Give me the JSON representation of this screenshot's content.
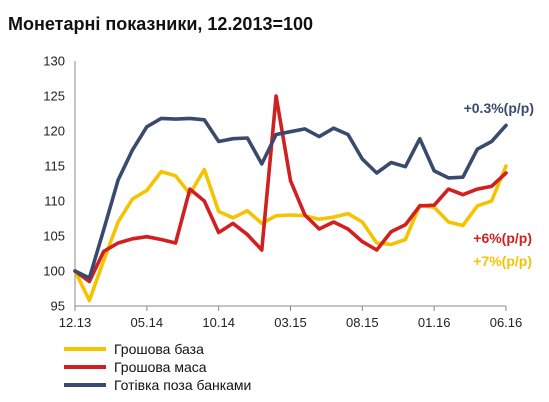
{
  "chart_data": {
    "type": "line",
    "title": "Монетарні показники, 12.2013=100",
    "xlabel": "",
    "ylabel": "",
    "ylim": [
      95,
      130
    ],
    "yticks": [
      95,
      100,
      105,
      110,
      115,
      120,
      125,
      130
    ],
    "x_tick_labels": [
      "12.13",
      "05.14",
      "10.14",
      "03.15",
      "08.15",
      "01.16",
      "06.16"
    ],
    "x_tick_index": [
      0,
      5,
      10,
      15,
      20,
      25,
      30
    ],
    "grid": false,
    "legend_position": "bottom-left",
    "series": [
      {
        "name": "Грошова база",
        "color": "#F5C400",
        "values": [
          100,
          95.8,
          101.5,
          107,
          110.3,
          111.5,
          114.2,
          113.6,
          111,
          114.5,
          108.5,
          107.6,
          108.6,
          106.8,
          107.9,
          108,
          107.9,
          107.4,
          107.7,
          108.2,
          107,
          104,
          103.8,
          104.5,
          109.4,
          109.1,
          107,
          106.5,
          109.3,
          110,
          115
        ]
      },
      {
        "name": "Грошова маса",
        "color": "#D21F1F",
        "values": [
          100,
          98.5,
          102.8,
          104,
          104.6,
          104.9,
          104.5,
          104,
          111.7,
          110,
          105.5,
          106.8,
          105.2,
          103,
          125,
          112.9,
          108,
          106,
          107,
          106,
          104.2,
          103,
          105.6,
          106.6,
          109.3,
          109.4,
          111.7,
          110.9,
          111.7,
          112.1,
          114
        ]
      },
      {
        "name": "Готівка поза банками",
        "color": "#3A4A6E",
        "values": [
          100,
          99,
          105.9,
          113,
          117.3,
          120.6,
          121.8,
          121.7,
          121.8,
          121.6,
          118.5,
          118.9,
          119,
          115.3,
          119.5,
          119.9,
          120.3,
          119.2,
          120.4,
          119.5,
          116,
          114,
          115.5,
          114.9,
          118.9,
          114.3,
          113.3,
          113.4,
          117.4,
          118.5,
          120.8
        ]
      }
    ],
    "annotations": [
      {
        "text": "+0.3%(р/р)",
        "color": "#3A4A6E"
      },
      {
        "text": "+6%(р/р)",
        "color": "#D21F1F"
      },
      {
        "text": "+7%(р/р)",
        "color": "#F5C400"
      }
    ]
  }
}
